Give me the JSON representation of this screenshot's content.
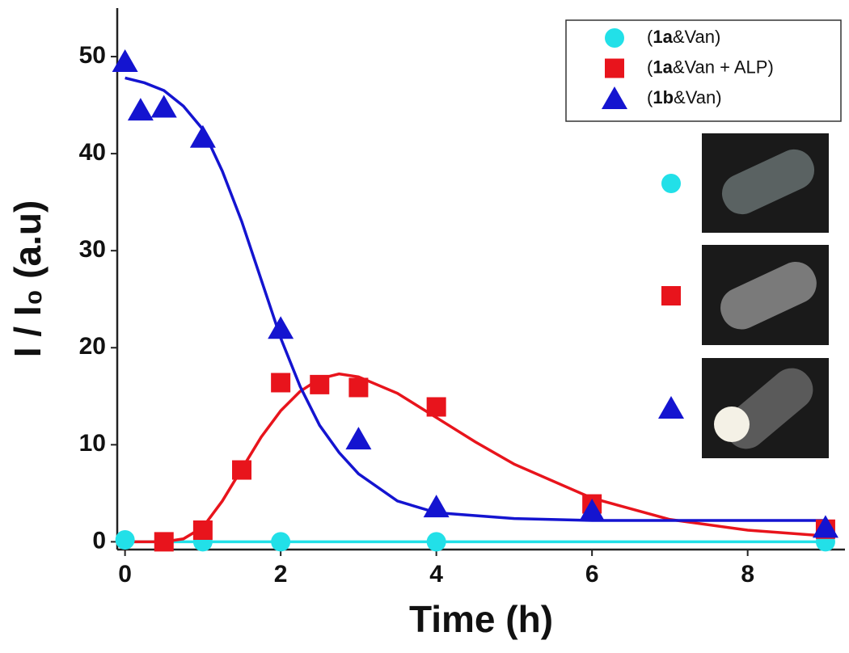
{
  "chart_data": {
    "type": "scatter",
    "x_label": "Time (h)",
    "y_label": "I / I₀ (a.u)",
    "xlim": [
      -0.1,
      9.25
    ],
    "ylim": [
      -0.8,
      55
    ],
    "xticks": [
      0,
      2,
      4,
      6,
      8
    ],
    "yticks": [
      0,
      10,
      20,
      30,
      40,
      50
    ],
    "series": [
      {
        "name": "(1a&Van)",
        "color": "#22e0e8",
        "marker": "circle",
        "x": [
          0,
          1,
          2,
          4,
          9
        ],
        "values": [
          0.2,
          0,
          0,
          0,
          0
        ],
        "fit_x": [
          0,
          9
        ],
        "fit_y": [
          0,
          0
        ]
      },
      {
        "name": "(1a&Van + ALP)",
        "color": "#e8141c",
        "marker": "square",
        "x": [
          0.5,
          1,
          1.5,
          2,
          2.5,
          3,
          4,
          6,
          9
        ],
        "values": [
          0,
          1.2,
          7.4,
          16.4,
          16.2,
          15.9,
          13.9,
          3.9,
          1.3
        ],
        "fit_x": [
          0,
          0.5,
          0.75,
          1,
          1.25,
          1.5,
          1.75,
          2,
          2.25,
          2.5,
          2.75,
          3,
          3.5,
          4,
          4.5,
          5,
          6,
          7,
          8,
          9
        ],
        "fit_y": [
          0,
          0,
          0.3,
          1.5,
          4.2,
          7.5,
          10.8,
          13.5,
          15.5,
          16.8,
          17.3,
          17,
          15.3,
          12.8,
          10.3,
          8,
          4.5,
          2.3,
          1.2,
          0.6
        ]
      },
      {
        "name": "(1b&Van)",
        "color": "#1414d0",
        "marker": "triangle",
        "x": [
          0,
          0.2,
          0.5,
          1,
          2,
          3,
          4,
          6,
          9
        ],
        "values": [
          49.5,
          44.5,
          44.8,
          41.7,
          22,
          10.6,
          3.6,
          3.2,
          1.5
        ],
        "fit_x": [
          0,
          0.25,
          0.5,
          0.75,
          1,
          1.25,
          1.5,
          1.75,
          2,
          2.25,
          2.5,
          2.75,
          3,
          3.5,
          4,
          5,
          6,
          9
        ],
        "fit_y": [
          47.8,
          47.3,
          46.5,
          44.9,
          42.5,
          38.2,
          33,
          27,
          21,
          16,
          12,
          9.2,
          7,
          4.2,
          3,
          2.4,
          2.2,
          2.2
        ]
      }
    ]
  }
}
